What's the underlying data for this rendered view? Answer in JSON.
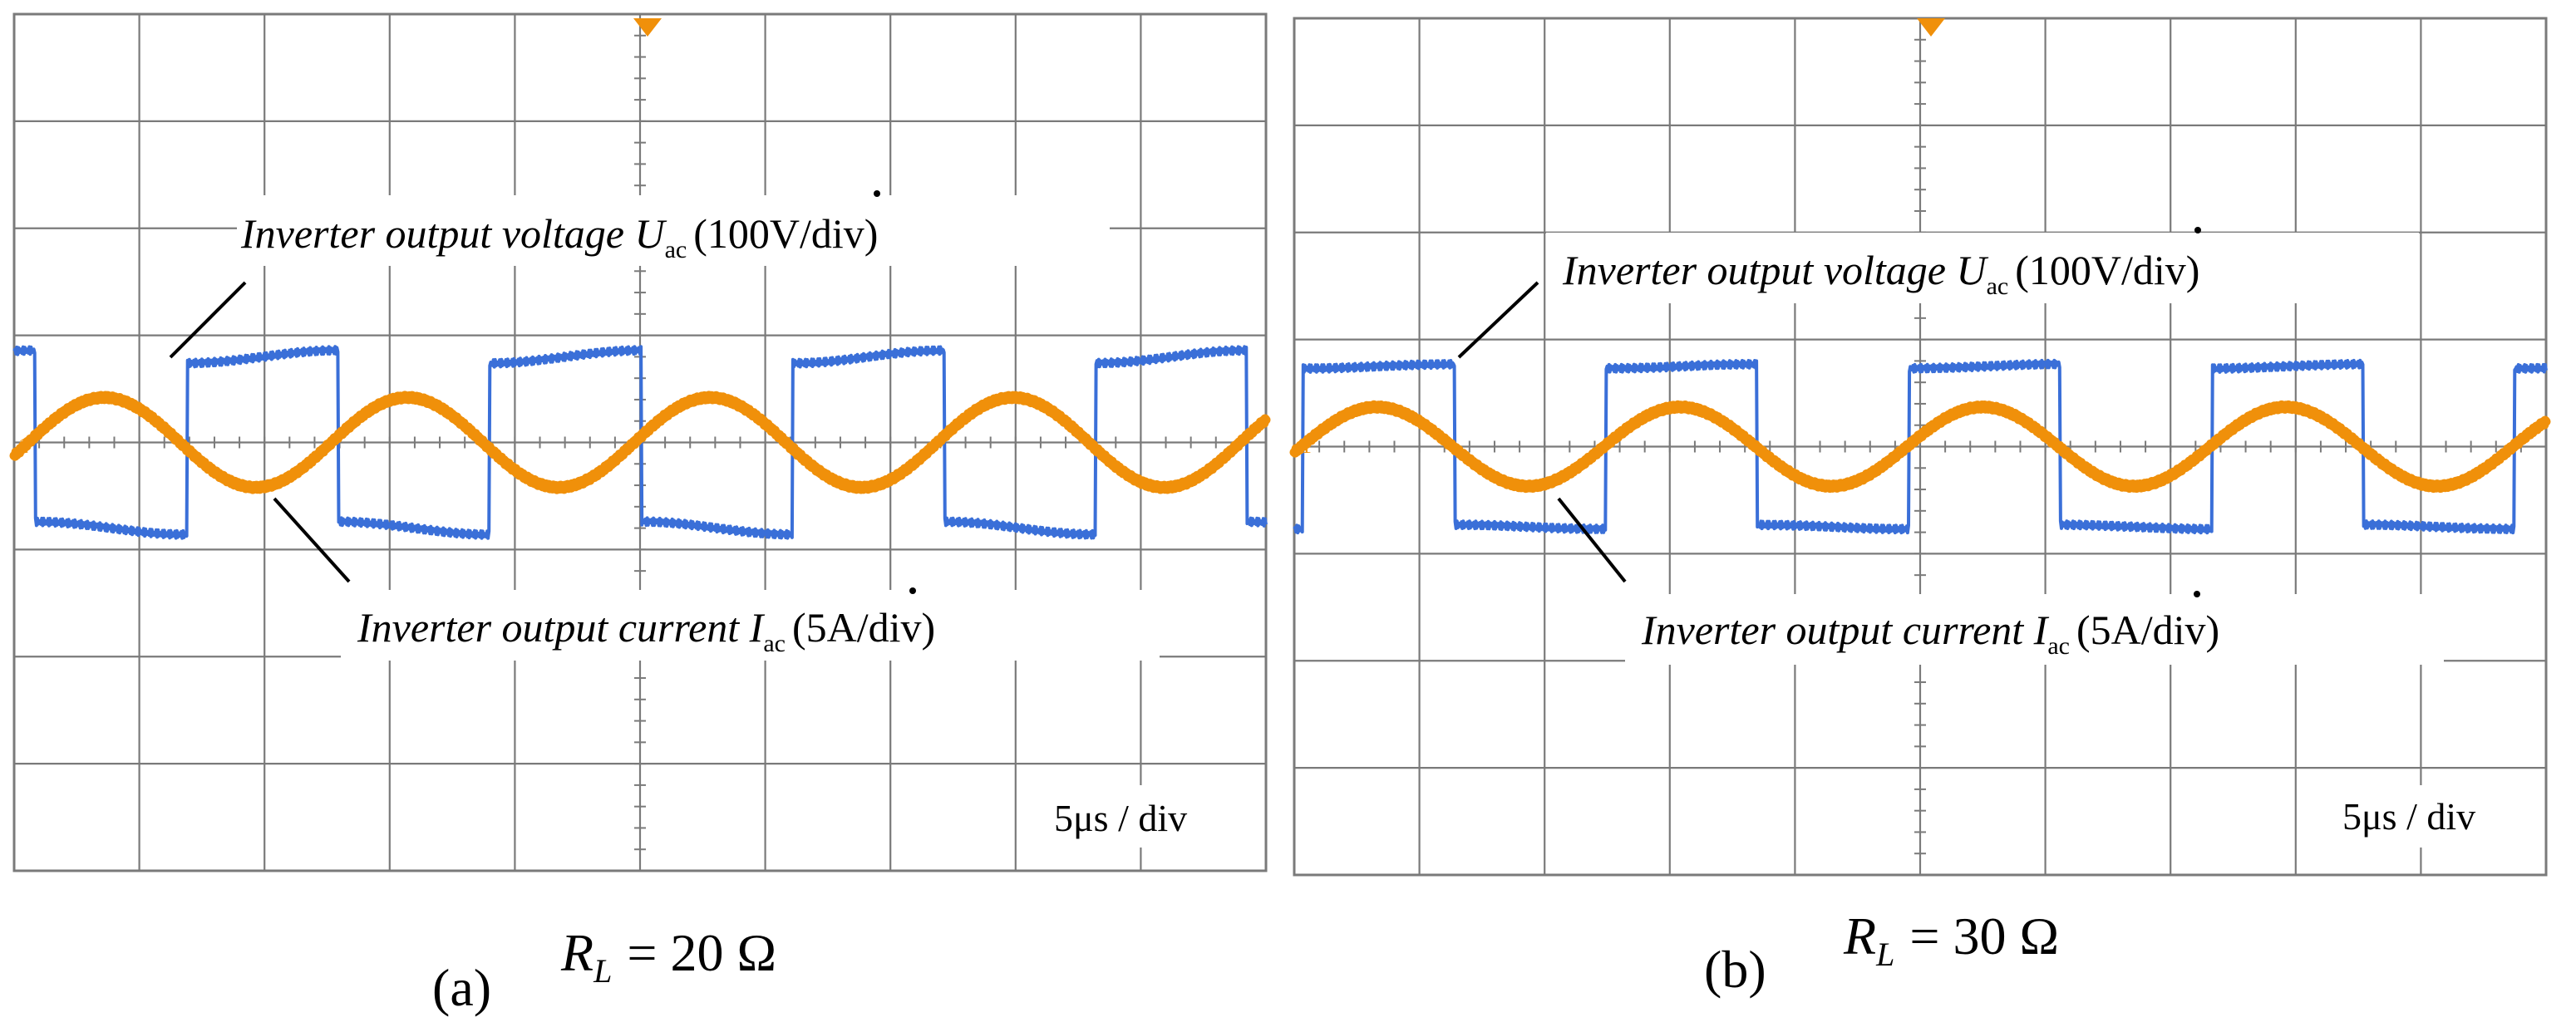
{
  "figure": {
    "panels": [
      {
        "label": "(a)",
        "load_symbol": "R",
        "load_subscript": "L",
        "load_value": "= 20 Ω",
        "timebase": "5μs / div",
        "voltage_annotation": {
          "prefix": "Inverter output voltage ",
          "symbol": "U",
          "subscript": "ac",
          "scale": "(100V/div)"
        },
        "current_annotation": {
          "prefix": "Inverter output current ",
          "symbol": "I",
          "subscript": "ac",
          "scale": "(5A/div)"
        },
        "channel_marker": "1"
      },
      {
        "label": "(b)",
        "load_symbol": "R",
        "load_subscript": "L",
        "load_value": "= 30 Ω",
        "timebase": "5μs / div",
        "voltage_annotation": {
          "prefix": "Inverter output voltage ",
          "symbol": "U",
          "subscript": "ac",
          "scale": "(100V/div)"
        },
        "current_annotation": {
          "prefix": "Inverter output current ",
          "symbol": "I",
          "subscript": "ac",
          "scale": "(5A/div)"
        },
        "channel_marker": "1"
      }
    ]
  },
  "chart_data": [
    {
      "type": "line",
      "title": "(a) R_L = 20 Ω",
      "grid": true,
      "xdivs": 10,
      "ydivs": 8,
      "xlim": [
        0,
        50
      ],
      "ylim": [
        -4,
        4
      ],
      "x_unit": "μs",
      "x_scale_per_div": "5μs / div",
      "colors": {
        "voltage": "#3a6fd8",
        "current": "#f0900a",
        "grid": "#7a7a7a"
      },
      "series": [
        {
          "name": "Inverter output voltage U_ac",
          "scale": "100V/div",
          "kind": "square",
          "period_us": 12.1,
          "first_edge_us": 6.9,
          "high_div": 0.8,
          "low_div": -0.8,
          "sag_div": 0.12,
          "initial": "low"
        },
        {
          "name": "Inverter output current I_ac",
          "scale": "5A/div",
          "kind": "sine",
          "period_us": 12.1,
          "amplitude_div": 0.42,
          "offset_div": 0.0,
          "first_peak_us": 3.6
        }
      ]
    },
    {
      "type": "line",
      "title": "(b) R_L = 30 Ω",
      "grid": true,
      "xdivs": 10,
      "ydivs": 8,
      "xlim": [
        0,
        50
      ],
      "ylim": [
        -4,
        4
      ],
      "x_unit": "μs",
      "x_scale_per_div": "5μs / div",
      "colors": {
        "voltage": "#3a6fd8",
        "current": "#f0900a",
        "grid": "#7a7a7a"
      },
      "series": [
        {
          "name": "Inverter output voltage U_ac",
          "scale": "100V/div",
          "kind": "square",
          "period_us": 12.1,
          "first_edge_us": 6.4,
          "high_div": 0.75,
          "low_div": -0.75,
          "sag_div": 0.04,
          "initial": "high"
        },
        {
          "name": "Inverter output current I_ac",
          "scale": "5A/div",
          "kind": "sine",
          "period_us": 12.1,
          "amplitude_div": 0.37,
          "offset_div": 0.0,
          "first_peak_us": 3.3
        }
      ]
    }
  ]
}
